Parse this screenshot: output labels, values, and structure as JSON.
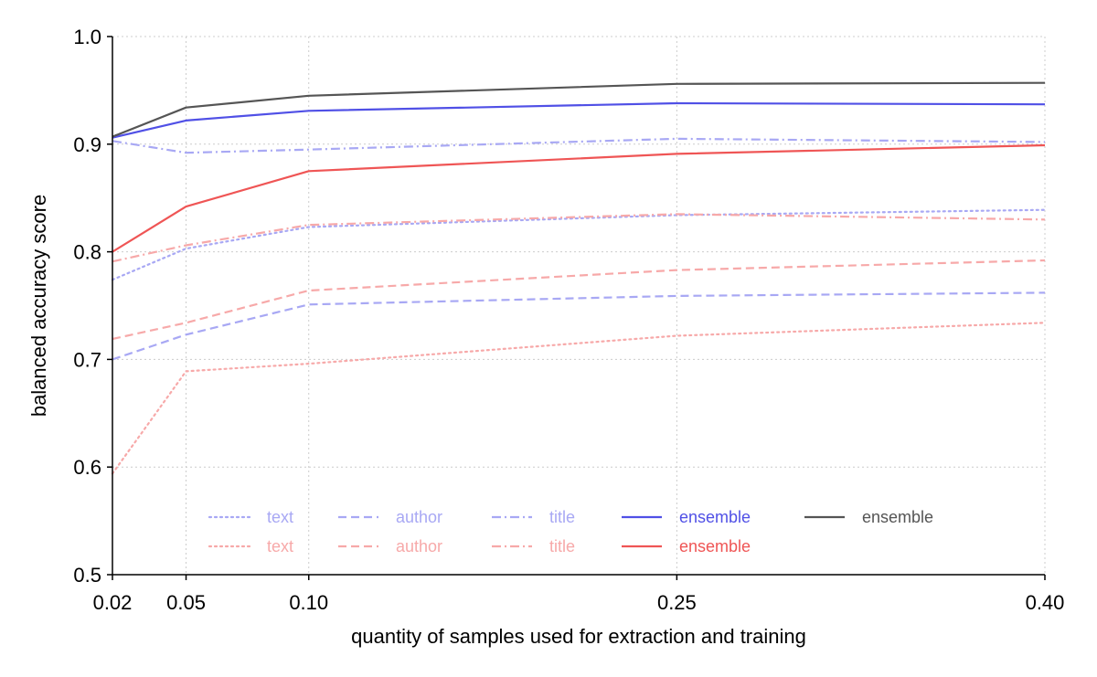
{
  "chart_data": {
    "type": "line",
    "title": "",
    "xlabel": "quantity of samples used for extraction and training",
    "ylabel": "balanced accuracy score",
    "x": [
      0.02,
      0.05,
      0.1,
      0.25,
      0.4
    ],
    "x_tick_labels": [
      "0.02",
      "0.05",
      "0.10",
      "0.25",
      "0.40"
    ],
    "y_ticks": [
      0.5,
      0.6,
      0.7,
      0.8,
      0.9,
      1.0
    ],
    "y_tick_labels": [
      "0.5",
      "0.6",
      "0.7",
      "0.8",
      "0.9",
      "1.0"
    ],
    "xlim": [
      0.02,
      0.4
    ],
    "ylim": [
      0.5,
      1.0
    ],
    "grid": true,
    "legend_position": "bottom-center",
    "series": [
      {
        "name": "text",
        "color": "#a8a8f4",
        "dash": "dotted",
        "values": [
          0.774,
          0.803,
          0.823,
          0.834,
          0.839
        ]
      },
      {
        "name": "text",
        "color": "#f7a9a9",
        "dash": "dotted",
        "values": [
          0.594,
          0.689,
          0.696,
          0.722,
          0.734
        ]
      },
      {
        "name": "author",
        "color": "#a8a8f4",
        "dash": "dashed",
        "values": [
          0.7,
          0.723,
          0.751,
          0.759,
          0.762
        ]
      },
      {
        "name": "author",
        "color": "#f7a9a9",
        "dash": "dashed",
        "values": [
          0.719,
          0.734,
          0.764,
          0.783,
          0.792
        ]
      },
      {
        "name": "title",
        "color": "#a8a8f4",
        "dash": "dashdot",
        "values": [
          0.903,
          0.892,
          0.895,
          0.905,
          0.902
        ]
      },
      {
        "name": "title",
        "color": "#f7a9a9",
        "dash": "dashdot",
        "values": [
          0.791,
          0.806,
          0.825,
          0.835,
          0.83
        ]
      },
      {
        "name": "ensemble",
        "color": "#5050e6",
        "dash": "solid",
        "values": [
          0.906,
          0.922,
          0.931,
          0.938,
          0.937
        ]
      },
      {
        "name": "ensemble",
        "color": "#ef5555",
        "dash": "solid",
        "values": [
          0.8,
          0.842,
          0.875,
          0.891,
          0.899
        ]
      },
      {
        "name": "ensemble",
        "color": "#555555",
        "dash": "solid",
        "values": [
          0.907,
          0.934,
          0.945,
          0.956,
          0.957
        ]
      }
    ]
  }
}
